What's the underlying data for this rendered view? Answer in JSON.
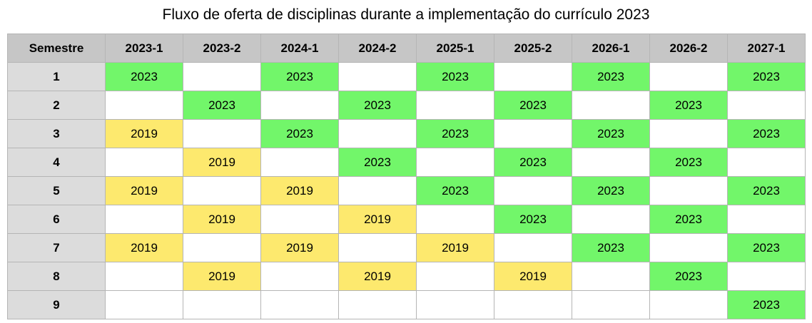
{
  "title": "Fluxo de oferta de disciplinas durante a implementação do currículo 2023",
  "colors": {
    "curriculum_2023": "#72f66a",
    "curriculum_2019": "#fde96e",
    "header": "#c6c6c6",
    "row_header": "#dcdcdc"
  },
  "header": [
    "Semestre",
    "2023-1",
    "2023-2",
    "2024-1",
    "2024-2",
    "2025-1",
    "2025-2",
    "2026-1",
    "2026-2",
    "2027-1"
  ],
  "rows": [
    {
      "semestre": "1",
      "cells": [
        "2023",
        "",
        "2023",
        "",
        "2023",
        "",
        "2023",
        "",
        "2023"
      ]
    },
    {
      "semestre": "2",
      "cells": [
        "",
        "2023",
        "",
        "2023",
        "",
        "2023",
        "",
        "2023",
        ""
      ]
    },
    {
      "semestre": "3",
      "cells": [
        "2019",
        "",
        "2023",
        "",
        "2023",
        "",
        "2023",
        "",
        "2023"
      ]
    },
    {
      "semestre": "4",
      "cells": [
        "",
        "2019",
        "",
        "2023",
        "",
        "2023",
        "",
        "2023",
        ""
      ]
    },
    {
      "semestre": "5",
      "cells": [
        "2019",
        "",
        "2019",
        "",
        "2023",
        "",
        "2023",
        "",
        "2023"
      ]
    },
    {
      "semestre": "6",
      "cells": [
        "",
        "2019",
        "",
        "2019",
        "",
        "2023",
        "",
        "2023",
        ""
      ]
    },
    {
      "semestre": "7",
      "cells": [
        "2019",
        "",
        "2019",
        "",
        "2019",
        "",
        "2023",
        "",
        "2023"
      ]
    },
    {
      "semestre": "8",
      "cells": [
        "",
        "2019",
        "",
        "2019",
        "",
        "2019",
        "",
        "2023",
        ""
      ]
    },
    {
      "semestre": "9",
      "cells": [
        "",
        "",
        "",
        "",
        "",
        "",
        "",
        "",
        "2023"
      ]
    }
  ]
}
